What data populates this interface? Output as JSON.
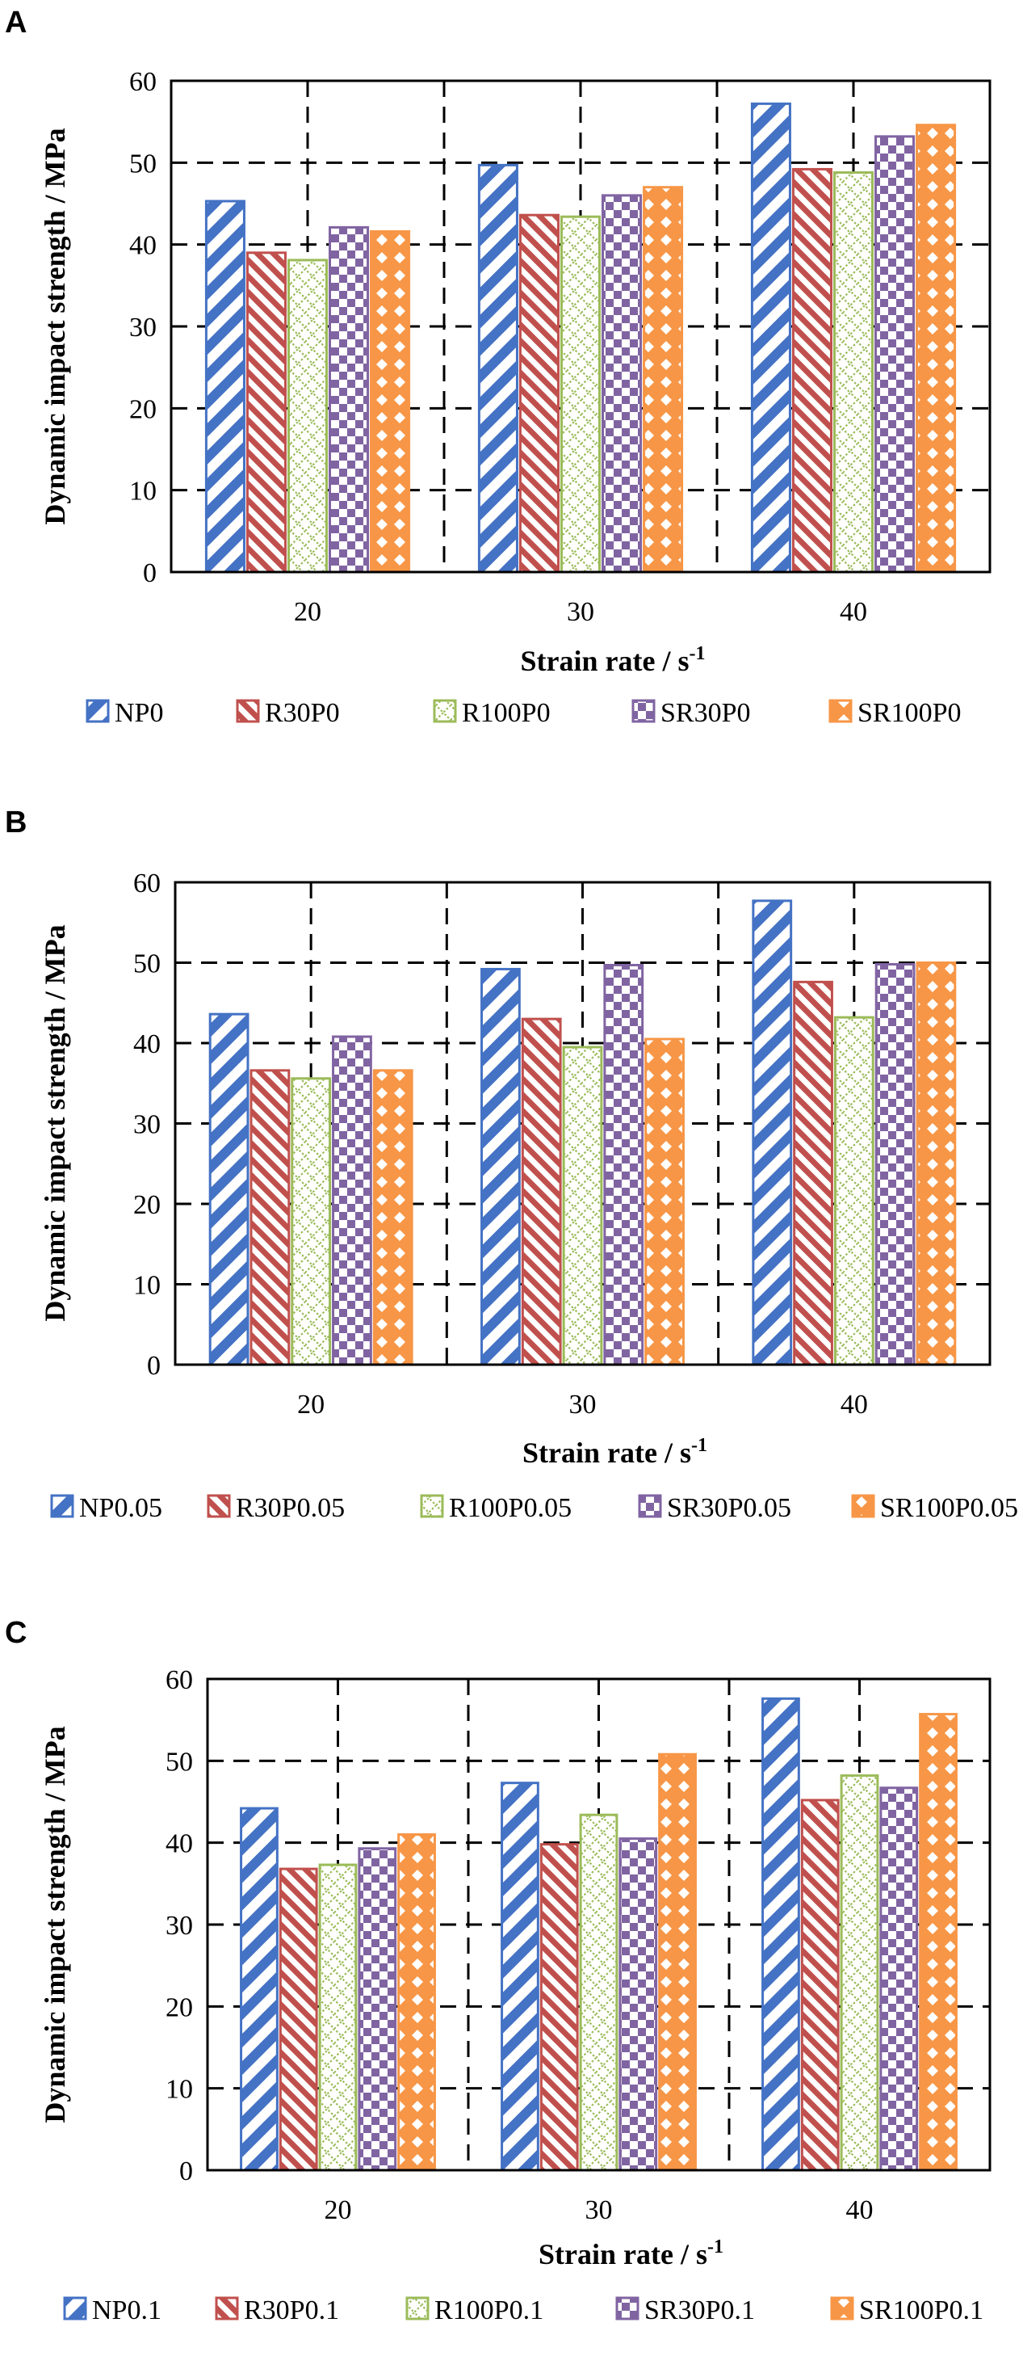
{
  "series_style": [
    {
      "color": "#4472c4",
      "pattern": "wide-diagonal-stripes"
    },
    {
      "color": "#c0504d",
      "pattern": "narrow-diagonal-stripes"
    },
    {
      "color": "#9bbb59",
      "pattern": "dotted-diamond-grid"
    },
    {
      "color": "#8064a2",
      "pattern": "checkerboard"
    },
    {
      "color": "#f79646",
      "pattern": "diamond-dots"
    }
  ],
  "chart_data": [
    {
      "panel_label": "A",
      "type": "bar",
      "title": "",
      "xlabel": "Strain rate / s",
      "xlabel_sup": "-1",
      "ylabel": "Dynamic impact strength / MPa",
      "ylim": [
        0,
        60
      ],
      "yticks": [
        "0",
        "10",
        "20",
        "30",
        "40",
        "50",
        "60"
      ],
      "grid": "dashed",
      "legend": "bottom",
      "categories": [
        "20",
        "30",
        "40"
      ],
      "series": [
        {
          "name": "NP0",
          "values": [
            45.3,
            49.7,
            57.2
          ]
        },
        {
          "name": "R30P0",
          "values": [
            39.0,
            43.6,
            49.2
          ]
        },
        {
          "name": "R100P0",
          "values": [
            38.1,
            43.4,
            48.8
          ]
        },
        {
          "name": "SR30P0",
          "values": [
            42.1,
            46.0,
            53.2
          ]
        },
        {
          "name": "SR100P0",
          "values": [
            41.6,
            47.0,
            54.6
          ]
        }
      ]
    },
    {
      "panel_label": "B",
      "type": "bar",
      "title": "",
      "xlabel": "Strain rate / s",
      "xlabel_sup": "-1",
      "ylabel": "Dynamic impact strength / MPa",
      "ylim": [
        0,
        60
      ],
      "yticks": [
        "0",
        "10",
        "20",
        "30",
        "40",
        "50",
        "60"
      ],
      "grid": "dashed",
      "legend": "bottom",
      "categories": [
        "20",
        "30",
        "40"
      ],
      "series": [
        {
          "name": "NP0.05",
          "values": [
            43.6,
            49.2,
            57.7
          ]
        },
        {
          "name": "R30P0.05",
          "values": [
            36.6,
            43.0,
            47.6
          ]
        },
        {
          "name": "R100P0.05",
          "values": [
            35.6,
            39.5,
            43.2
          ]
        },
        {
          "name": "SR30P0.05",
          "values": [
            40.8,
            49.7,
            49.8
          ]
        },
        {
          "name": "SR100P0.05",
          "values": [
            36.6,
            40.5,
            50.0
          ]
        }
      ]
    },
    {
      "panel_label": "C",
      "type": "bar",
      "title": "",
      "xlabel": "Strain rate / s",
      "xlabel_sup": "-1",
      "ylabel": "Dynamic impact strength / MPa",
      "ylim": [
        0,
        60
      ],
      "yticks": [
        "0",
        "10",
        "20",
        "30",
        "40",
        "50",
        "60"
      ],
      "grid": "dashed",
      "legend": "bottom",
      "categories": [
        "20",
        "30",
        "40"
      ],
      "series": [
        {
          "name": "NP0.1",
          "values": [
            44.2,
            47.3,
            57.6
          ]
        },
        {
          "name": "R30P0.1",
          "values": [
            36.8,
            39.8,
            45.2
          ]
        },
        {
          "name": "R100P0.1",
          "values": [
            37.3,
            43.4,
            48.2
          ]
        },
        {
          "name": "SR30P0.1",
          "values": [
            39.3,
            40.5,
            46.7
          ]
        },
        {
          "name": "SR100P0.1",
          "values": [
            41.0,
            50.8,
            55.7
          ]
        }
      ]
    }
  ]
}
